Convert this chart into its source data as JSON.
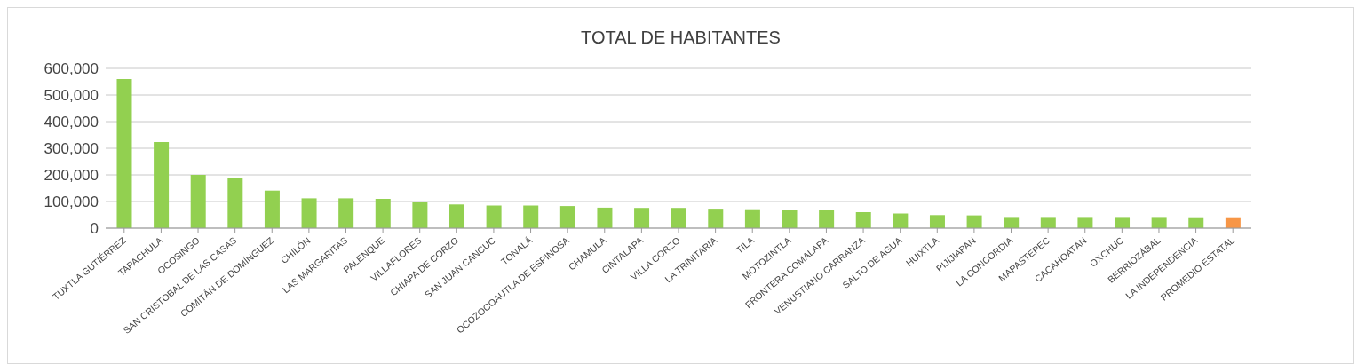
{
  "chart_data": {
    "type": "bar",
    "title": "TOTAL DE HABITANTES",
    "categories": [
      "TUXTLA GUTIÉRREZ",
      "TAPACHULA",
      "OCOSINGO",
      "SAN CRISTÓBAL DE LAS CASAS",
      "COMITÁN DE DOMÍNGUEZ",
      "CHILÓN",
      "LAS MARGARITAS",
      "PALENQUE",
      "VILLAFLORES",
      "CHIAPA DE CORZO",
      "SAN JUAN CANCUC",
      "TONALÁ",
      "OCOZOCOAUTLA DE ESPINOSA",
      "CHAMULA",
      "CINTALAPA",
      "VILLA CORZO",
      "LA TRINITARIA",
      "TILA",
      "MOTOZINTLA",
      "FRONTERA COMALAPA",
      "VENUSTIANO CARRANZA",
      "SALTO DE AGUA",
      "HUIXTLA",
      "PIJIJIAPAN",
      "LA CONCORDIA",
      "MAPASTEPEC",
      "CACAHOATÁN",
      "OXCHUC",
      "BERRIOZÁBAL",
      "LA INDEPENDENCIA",
      "PROMEDIO ESTATAL"
    ],
    "values": [
      560000,
      323000,
      200000,
      188000,
      141000,
      112000,
      112000,
      110000,
      100000,
      89000,
      85000,
      85000,
      83000,
      77000,
      76000,
      76000,
      73000,
      71000,
      70000,
      67000,
      60000,
      55000,
      49000,
      48000,
      42000,
      42000,
      42000,
      42000,
      42000,
      41000,
      41000
    ],
    "colors": [
      "#92d050",
      "#92d050",
      "#92d050",
      "#92d050",
      "#92d050",
      "#92d050",
      "#92d050",
      "#92d050",
      "#92d050",
      "#92d050",
      "#92d050",
      "#92d050",
      "#92d050",
      "#92d050",
      "#92d050",
      "#92d050",
      "#92d050",
      "#92d050",
      "#92d050",
      "#92d050",
      "#92d050",
      "#92d050",
      "#92d050",
      "#92d050",
      "#92d050",
      "#92d050",
      "#92d050",
      "#92d050",
      "#92d050",
      "#92d050",
      "#f79646"
    ],
    "ylim": [
      0,
      600000
    ],
    "yticks": [
      0,
      {
        "value": 100000,
        "label": "100,000"
      },
      {
        "value": 200000,
        "label": "200,000"
      },
      {
        "value": 300000,
        "label": "300,000"
      },
      {
        "value": 400000,
        "label": "400,000"
      },
      {
        "value": 500000,
        "label": "500,000"
      },
      {
        "value": 600000,
        "label": "600,000"
      }
    ],
    "grid": "y",
    "legend": false
  }
}
